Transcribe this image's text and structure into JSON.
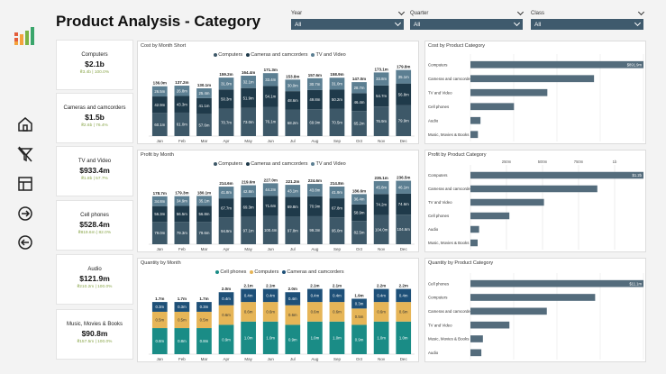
{
  "title": "Product Analysis - Category",
  "filters": [
    {
      "label": "Year",
      "value": "All"
    },
    {
      "label": "Quarter",
      "value": "All"
    },
    {
      "label": "Class",
      "value": "All"
    }
  ],
  "nav": [
    "home-icon",
    "clear-filter-icon",
    "table-icon",
    "forward-icon",
    "back-icon"
  ],
  "kpis": [
    {
      "name": "Computers",
      "value": "$2.1b",
      "sub": "₴3.4b | 100.0%"
    },
    {
      "name": "Cameras and camcorders",
      "value": "$1.5b",
      "sub": "₴2.6b | 76.4%"
    },
    {
      "name": "TV and Video",
      "value": "$933.4m",
      "sub": "₴1.8b | 57.7%"
    },
    {
      "name": "Cell phones",
      "value": "$528.4m",
      "sub": "₴819.6m | 82.0%"
    },
    {
      "name": "Audio",
      "value": "$121.9m",
      "sub": "₴210.2m | 100.0%"
    },
    {
      "name": "Music, Movies & Books",
      "value": "$90.8m",
      "sub": "₴157.5m | 100.0%"
    }
  ],
  "colors": {
    "computers": "#3d5868",
    "cameras": "#1f3a4a",
    "tv": "#5c7f92",
    "cellphones": "#1a8c86",
    "qty_computers": "#e6b557",
    "qty_cameras": "#1e5078",
    "bar": "#546c7c"
  },
  "chart_data": [
    {
      "type": "bar",
      "title": "Cost by Month Short",
      "categories": [
        "Jan",
        "Feb",
        "Mar",
        "Apr",
        "May",
        "Jun",
        "Jul",
        "Aug",
        "Sep",
        "Oct",
        "Nov",
        "Dec"
      ],
      "totals": [
        "136.0m",
        "137.2m",
        "130.1m",
        "159.2m",
        "164.4m",
        "171.3m",
        "153.8m",
        "157.6m",
        "158.9m",
        "147.0m",
        "173.1m",
        "179.8m"
      ],
      "series": [
        {
          "name": "Computers",
          "values": [
            60.1,
            61.0,
            57.6,
            70.7,
            73.0,
            76.1,
            68.2,
            69.9,
            70.5,
            65.2,
            76.9,
            79.9
          ],
          "labels": [
            "60.1m",
            "61.0m",
            "57.6m",
            "70.7m",
            "73.0m",
            "76.1m",
            "68.2m",
            "69.9m",
            "70.5m",
            "65.2m",
            "76.9m",
            "79.9m"
          ]
        },
        {
          "name": "Cameras and camcorders",
          "values": [
            42.9,
            43.3,
            41.1,
            50.3,
            51.9,
            54.1,
            48.6,
            49.8,
            50.2,
            46.4,
            54.7,
            56.8
          ],
          "labels": [
            "42.9m",
            "43.3m",
            "41.1m",
            "50.3m",
            "51.9m",
            "54.1m",
            "48.6m",
            "49.8m",
            "50.2m",
            "46.4m",
            "54.7m",
            "56.8m"
          ]
        },
        {
          "name": "TV and Video",
          "values": [
            26.5,
            26.8,
            25.4,
            31.0,
            32.1,
            33.4,
            30.0,
            30.7,
            31.0,
            28.7,
            33.8,
            35.1
          ],
          "labels": [
            "26.5m",
            "26.8m",
            "25.4m",
            "31.0m",
            "32.1m",
            "33.4m",
            "30.0m",
            "30.7m",
            "31.0m",
            "28.7m",
            "33.8m",
            "35.1m"
          ]
        }
      ]
    },
    {
      "type": "bar",
      "title": "Profit by Month",
      "categories": [
        "Jan",
        "Feb",
        "Mar",
        "Apr",
        "May",
        "Jun",
        "Jul",
        "Aug",
        "Sep",
        "Oct",
        "Nov",
        "Dec"
      ],
      "totals": [
        "178.7m",
        "179.3m",
        "180.1m",
        "214.6m",
        "219.6m",
        "227.0m",
        "221.2m",
        "224.6m",
        "214.8m",
        "186.6m",
        "235.1m",
        "236.5m"
      ],
      "series": [
        {
          "name": "Computers",
          "values": [
            79.0,
            79.3,
            79.6,
            94.9,
            97.1,
            100.4,
            97.8,
            99.3,
            95.0,
            82.5,
            104.0,
            104.6
          ],
          "labels": [
            "79.0m",
            "79.3m",
            "79.6m",
            "94.9m",
            "97.1m",
            "100.4m",
            "97.8m",
            "99.3m",
            "95.0m",
            "82.5m",
            "104.0m",
            "104.6m"
          ]
        },
        {
          "name": "Cameras and camcorders",
          "values": [
            56.3,
            56.5,
            56.8,
            67.7,
            69.3,
            71.6,
            69.8,
            70.9,
            67.8,
            58.9,
            74.2,
            74.6
          ],
          "labels": [
            "56.3m",
            "56.5m",
            "56.8m",
            "67.7m",
            "69.3m",
            "71.6m",
            "69.8m",
            "70.9m",
            "67.8m",
            "58.9m",
            "74.2m",
            "74.6m"
          ]
        },
        {
          "name": "TV and Video",
          "values": [
            34.8,
            34.9,
            35.1,
            41.8,
            42.8,
            44.2,
            43.1,
            43.8,
            41.9,
            36.4,
            45.8,
            46.1
          ],
          "labels": [
            "34.8m",
            "34.9m",
            "35.1m",
            "41.8m",
            "42.8m",
            "44.2m",
            "43.1m",
            "43.8m",
            "41.9m",
            "36.4m",
            "45.8m",
            "46.1m"
          ]
        }
      ]
    },
    {
      "type": "bar",
      "title": "Quantity by Month",
      "categories": [
        "Jan",
        "Feb",
        "Mar",
        "Apr",
        "May",
        "Jun",
        "Jul",
        "Aug",
        "Sep",
        "Oct",
        "Nov",
        "Dec"
      ],
      "totals": [
        "1.7m",
        "1.7m",
        "1.7m",
        "2.0m",
        "2.1m",
        "2.1m",
        "2.0m",
        "2.1m",
        "2.1m",
        "1.9m",
        "2.2m",
        "2.2m"
      ],
      "series": [
        {
          "name": "Cell phones",
          "values": [
            0.8,
            0.8,
            0.8,
            0.9,
            1.0,
            1.0,
            0.9,
            1.0,
            1.0,
            0.9,
            1.0,
            1.0
          ],
          "labels": [
            "0.8m",
            "0.8m",
            "0.8m",
            "0.9m",
            "1.0m",
            "1.0m",
            "0.9m",
            "1.0m",
            "1.0m",
            "0.9m",
            "1.0m",
            "1.0m"
          ]
        },
        {
          "name": "Computers",
          "values": [
            0.5,
            0.5,
            0.5,
            0.6,
            0.6,
            0.6,
            0.6,
            0.6,
            0.6,
            0.5,
            0.6,
            0.6
          ],
          "labels": [
            "0.5m",
            "0.5m",
            "0.5m",
            "0.6m",
            "0.6m",
            "0.6m",
            "0.6m",
            "0.6m",
            "0.6m",
            "0.5m",
            "0.6m",
            "0.6m"
          ]
        },
        {
          "name": "Cameras and camcorders",
          "values": [
            0.3,
            0.3,
            0.3,
            0.4,
            0.4,
            0.4,
            0.4,
            0.4,
            0.4,
            0.3,
            0.4,
            0.4
          ],
          "labels": [
            "0.3m",
            "0.3m",
            "0.3m",
            "0.4m",
            "0.4m",
            "0.4m",
            "0.4m",
            "0.4m",
            "0.4m",
            "0.3m",
            "0.4m",
            "0.4m"
          ]
        }
      ]
    },
    {
      "type": "bar",
      "title": "Cost by Product Category",
      "categories": [
        "Computers",
        "Cameras and camcorders",
        "TV and Video",
        "Cell phones",
        "Audio",
        "Music, Movies & Books"
      ],
      "values": [
        2.1,
        1.5,
        0.9334,
        0.5284,
        0.1219,
        0.0908
      ],
      "value_label": "$891.9m",
      "xlim": [
        0,
        2.1
      ]
    },
    {
      "type": "bar",
      "title": "Profit by Product Category",
      "categories": [
        "Computers",
        "Cameras and camcorders",
        "TV and Video",
        "Cell phones",
        "Audio",
        "Music, Movies & Books"
      ],
      "values": [
        1.2,
        0.88,
        0.51,
        0.27,
        0.06,
        0.05
      ],
      "value_label": "$1.2b",
      "ticks": [
        "",
        "250m",
        "500m",
        "750m",
        "1b"
      ],
      "xlim": [
        0,
        1.2
      ]
    },
    {
      "type": "bar",
      "title": "Quantity by Product Category",
      "categories": [
        "Cell phones",
        "Computers",
        "Cameras and camcorders",
        "TV and Video",
        "Music, Movies & Books",
        "Audio"
      ],
      "values": [
        11.1,
        8.0,
        4.9,
        2.5,
        0.8,
        0.7
      ],
      "value_label": "$11.1m",
      "xlim": [
        0,
        11.1
      ]
    }
  ]
}
